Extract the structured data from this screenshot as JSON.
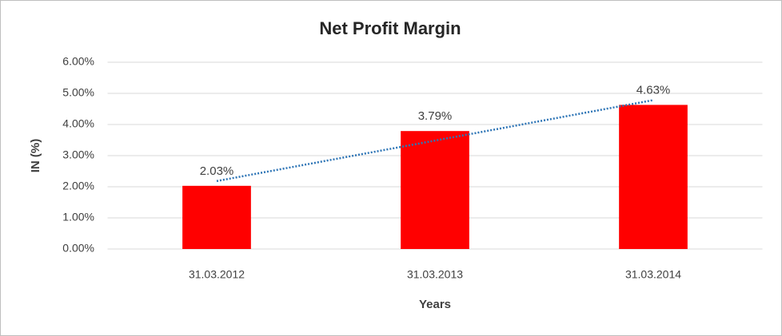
{
  "chart_data": {
    "type": "bar",
    "title": "Net Profit Margin",
    "x_label": "Years",
    "y_label": "IN (%)",
    "categories": [
      "31.03.2012",
      "31.03.2013",
      "31.03.2014"
    ],
    "values": [
      2.03,
      3.79,
      4.63
    ],
    "value_labels": [
      "2.03%",
      "3.79%",
      "4.63%"
    ],
    "color": "#ff0000",
    "ylim": [
      0,
      6
    ],
    "yticks": [
      {
        "value": 0,
        "label": "0.00%"
      },
      {
        "value": 1,
        "label": "1.00%"
      },
      {
        "value": 2,
        "label": "2.00%"
      },
      {
        "value": 3,
        "label": "3.00%"
      },
      {
        "value": 4,
        "label": "4.00%"
      },
      {
        "value": 5,
        "label": "5.00%"
      },
      {
        "value": 6,
        "label": "6.00%"
      }
    ],
    "grid": true,
    "trendline": "linear",
    "trendline_color": "#2e75b6"
  }
}
